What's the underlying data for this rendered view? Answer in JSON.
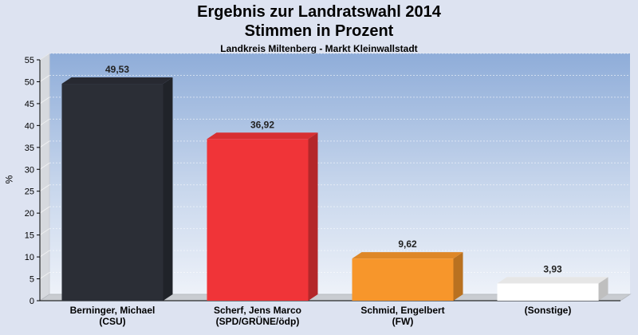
{
  "chart_data": {
    "type": "bar",
    "title": [
      "Ergebnis zur Landratswahl 2014",
      "Stimmen in Prozent"
    ],
    "subtitle": "Landkreis Miltenberg - Markt Kleinwallstadt",
    "ylabel": "%",
    "ylim": [
      0,
      55
    ],
    "yticks": [
      0,
      5,
      10,
      15,
      20,
      25,
      30,
      35,
      40,
      45,
      50,
      55
    ],
    "grid": true,
    "categories": [
      [
        "Berninger, Michael",
        "(CSU)"
      ],
      [
        "Scherf, Jens Marco",
        "(SPD/GRÜNE/ödp)"
      ],
      [
        "Schmid, Engelbert",
        "(FW)"
      ],
      [
        "(Sonstige)"
      ]
    ],
    "values": [
      49.53,
      36.92,
      9.62,
      3.93
    ],
    "value_labels": [
      "49,53",
      "36,92",
      "9,62",
      "3,93"
    ],
    "colors": [
      "#2b2e36",
      "#f03438",
      "#f7962b",
      "#ffffff"
    ]
  }
}
